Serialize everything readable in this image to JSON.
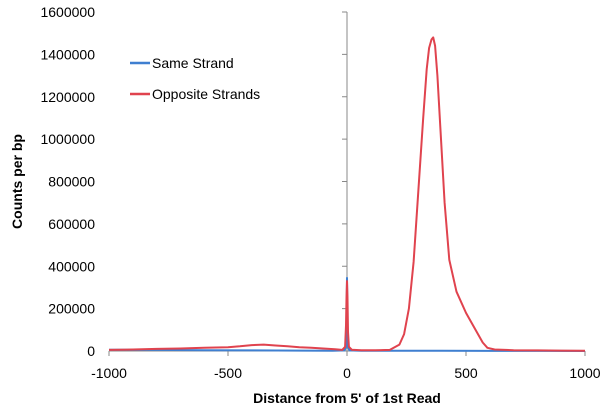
{
  "chart_data": {
    "type": "line",
    "title": "",
    "xlabel": "Distance from 5' of 1st Read",
    "ylabel": "Counts per bp",
    "xlim": [
      -1000,
      1000
    ],
    "ylim": [
      0,
      1600000
    ],
    "xticks": [
      -1000,
      -500,
      0,
      500,
      1000
    ],
    "yticks": [
      0,
      200000,
      400000,
      600000,
      800000,
      1000000,
      1200000,
      1400000,
      1600000
    ],
    "grid": false,
    "legend_position": "top-left",
    "series": [
      {
        "name": "Same Strand",
        "color": "#3f7fd0",
        "x": [
          -1000,
          -800,
          -600,
          -400,
          -200,
          -60,
          -10,
          -4,
          -2,
          0,
          2,
          4,
          10,
          60,
          200,
          400,
          600,
          800,
          1000
        ],
        "y": [
          6000,
          5000,
          4000,
          3000,
          2000,
          1500,
          3000,
          20000,
          120000,
          345000,
          120000,
          20000,
          3000,
          1500,
          1000,
          800,
          500,
          300,
          200
        ]
      },
      {
        "name": "Opposite Strands",
        "color": "#e0434e",
        "x": [
          -1000,
          -900,
          -800,
          -700,
          -600,
          -500,
          -450,
          -400,
          -350,
          -300,
          -250,
          -200,
          -150,
          -100,
          -50,
          -20,
          -8,
          -4,
          -2,
          0,
          2,
          4,
          8,
          20,
          60,
          120,
          180,
          220,
          240,
          260,
          280,
          300,
          320,
          335,
          345,
          355,
          362,
          370,
          380,
          395,
          410,
          430,
          460,
          500,
          540,
          570,
          590,
          620,
          700,
          800,
          900,
          1000
        ],
        "y": [
          5000,
          7000,
          10000,
          12000,
          15000,
          18000,
          22000,
          28000,
          30000,
          26000,
          22000,
          18000,
          15000,
          12000,
          8000,
          5000,
          20000,
          120000,
          250000,
          330000,
          250000,
          90000,
          20000,
          6000,
          4000,
          4000,
          5000,
          30000,
          80000,
          200000,
          420000,
          760000,
          1100000,
          1330000,
          1430000,
          1470000,
          1480000,
          1440000,
          1300000,
          1000000,
          700000,
          430000,
          280000,
          180000,
          100000,
          40000,
          15000,
          7000,
          4000,
          3000,
          2000,
          1500
        ]
      }
    ]
  }
}
